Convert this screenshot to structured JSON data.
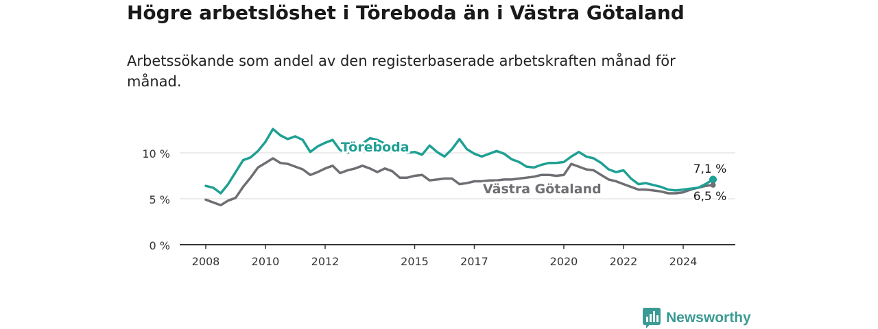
{
  "title": "Högre arbetslöshet i Töreboda än i Västra Götaland",
  "subtitle": "Arbetssökande som andel av den registerbaserade arbetskraften månad för månad.",
  "brand": {
    "name": "Newsworthy",
    "color": "#3a9a94"
  },
  "chart_data": {
    "type": "line",
    "title": "Högre arbetslöshet i Töreboda än i Västra Götaland",
    "subtitle": "Arbetssökande som andel av den registerbaserade arbetskraften månad för månad.",
    "xlabel": "",
    "ylabel": "",
    "ylim": [
      0,
      14
    ],
    "yticks": [
      0,
      5,
      10
    ],
    "ytick_labels": [
      "0 %",
      "5 %",
      "10 %"
    ],
    "xticks": [
      2008,
      2010,
      2012,
      2015,
      2017,
      2020,
      2022,
      2024
    ],
    "xtick_labels": [
      "2008",
      "2010",
      "2012",
      "2015",
      "2017",
      "2020",
      "2022",
      "2024"
    ],
    "grid": true,
    "legend": "inline labels",
    "series": [
      {
        "name": "Töreboda",
        "color": "#1fa094",
        "end_label": "7,1 %",
        "x": [
          2008.0,
          2008.25,
          2008.5,
          2008.75,
          2009.0,
          2009.25,
          2009.5,
          2009.75,
          2010.0,
          2010.25,
          2010.5,
          2010.75,
          2011.0,
          2011.25,
          2011.5,
          2011.75,
          2012.0,
          2012.25,
          2012.5,
          2012.75,
          2013.0,
          2013.25,
          2013.5,
          2013.75,
          2014.0,
          2014.25,
          2014.5,
          2014.75,
          2015.0,
          2015.25,
          2015.5,
          2015.75,
          2016.0,
          2016.25,
          2016.5,
          2016.75,
          2017.0,
          2017.25,
          2017.5,
          2017.75,
          2018.0,
          2018.25,
          2018.5,
          2018.75,
          2019.0,
          2019.25,
          2019.5,
          2019.75,
          2020.0,
          2020.25,
          2020.5,
          2020.75,
          2021.0,
          2021.25,
          2021.5,
          2021.75,
          2022.0,
          2022.25,
          2022.5,
          2022.75,
          2023.0,
          2023.25,
          2023.5,
          2023.75,
          2024.0,
          2024.25,
          2024.5,
          2024.75,
          2025.0
        ],
        "y": [
          6.4,
          6.2,
          5.6,
          6.6,
          7.9,
          9.2,
          9.5,
          10.2,
          11.2,
          12.6,
          11.9,
          11.5,
          11.8,
          11.4,
          10.1,
          10.7,
          11.1,
          11.4,
          10.3,
          10.0,
          10.5,
          11.0,
          11.6,
          11.4,
          11.0,
          10.8,
          10.6,
          10.0,
          10.1,
          9.8,
          10.8,
          10.1,
          9.6,
          10.4,
          11.5,
          10.4,
          9.9,
          9.6,
          9.9,
          10.2,
          9.9,
          9.3,
          9.0,
          8.5,
          8.4,
          8.7,
          8.9,
          8.9,
          9.0,
          9.6,
          10.1,
          9.6,
          9.4,
          8.9,
          8.2,
          7.9,
          8.1,
          7.2,
          6.6,
          6.7,
          6.5,
          6.3,
          6.0,
          5.9,
          6.0,
          6.1,
          6.2,
          6.6,
          7.1
        ]
      },
      {
        "name": "Västra Götaland",
        "color": "#6e6e73",
        "end_label": "6,5 %",
        "x": [
          2008.0,
          2008.25,
          2008.5,
          2008.75,
          2009.0,
          2009.25,
          2009.5,
          2009.75,
          2010.0,
          2010.25,
          2010.5,
          2010.75,
          2011.0,
          2011.25,
          2011.5,
          2011.75,
          2012.0,
          2012.25,
          2012.5,
          2012.75,
          2013.0,
          2013.25,
          2013.5,
          2013.75,
          2014.0,
          2014.25,
          2014.5,
          2014.75,
          2015.0,
          2015.25,
          2015.5,
          2015.75,
          2016.0,
          2016.25,
          2016.5,
          2016.75,
          2017.0,
          2017.25,
          2017.5,
          2017.75,
          2018.0,
          2018.25,
          2018.5,
          2018.75,
          2019.0,
          2019.25,
          2019.5,
          2019.75,
          2020.0,
          2020.25,
          2020.5,
          2020.75,
          2021.0,
          2021.25,
          2021.5,
          2021.75,
          2022.0,
          2022.25,
          2022.5,
          2022.75,
          2023.0,
          2023.25,
          2023.5,
          2023.75,
          2024.0,
          2024.25,
          2024.5,
          2024.75,
          2025.0
        ],
        "y": [
          4.9,
          4.6,
          4.3,
          4.8,
          5.1,
          6.3,
          7.3,
          8.4,
          8.9,
          9.4,
          8.9,
          8.8,
          8.5,
          8.2,
          7.6,
          7.9,
          8.3,
          8.6,
          7.8,
          8.1,
          8.3,
          8.6,
          8.3,
          7.9,
          8.3,
          8.0,
          7.3,
          7.3,
          7.5,
          7.6,
          7.0,
          7.1,
          7.2,
          7.2,
          6.6,
          6.7,
          6.9,
          6.9,
          7.0,
          7.0,
          7.1,
          7.1,
          7.2,
          7.3,
          7.4,
          7.6,
          7.6,
          7.5,
          7.6,
          8.8,
          8.5,
          8.2,
          8.1,
          7.6,
          7.1,
          6.9,
          6.6,
          6.3,
          6.0,
          6.0,
          5.9,
          5.8,
          5.6,
          5.6,
          5.7,
          6.0,
          6.2,
          6.4,
          6.5
        ]
      }
    ]
  }
}
